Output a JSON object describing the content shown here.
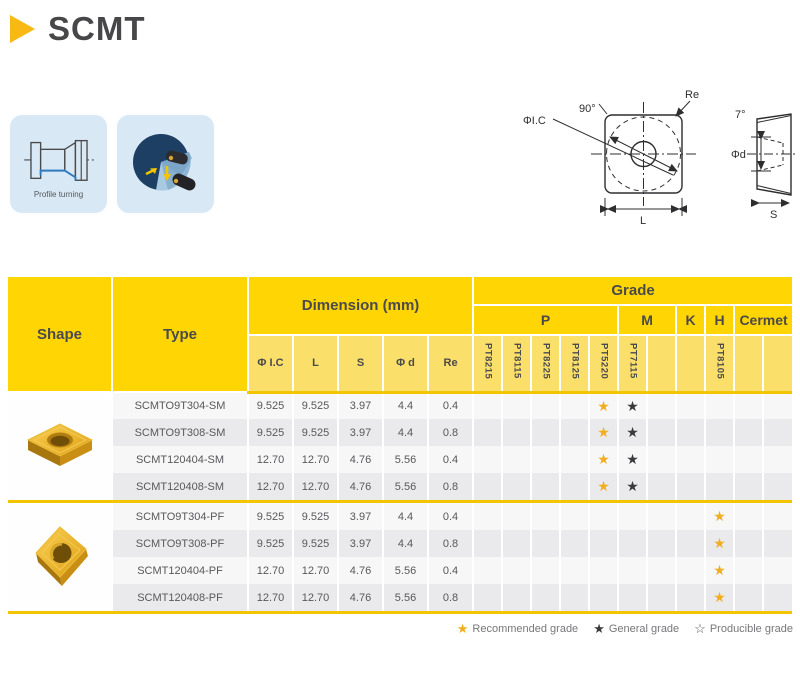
{
  "title": "SCMT",
  "cards": {
    "profile_turning_label": "Profile turning"
  },
  "diagram": {
    "labels": {
      "ic": "ΦI.C",
      "angle90": "90°",
      "re": "Re",
      "l": "L",
      "angle7": "7°",
      "d": "Φd",
      "s": "S"
    }
  },
  "table": {
    "headers": {
      "shape": "Shape",
      "type": "Type",
      "dimension": "Dimension (mm)",
      "grade": "Grade",
      "dim_cols": [
        "Φ I.C",
        "L",
        "S",
        "Φ d",
        "Re"
      ],
      "grade_groups": [
        {
          "label": "P",
          "span": 5
        },
        {
          "label": "M",
          "span": 2
        },
        {
          "label": "K",
          "span": 1
        },
        {
          "label": "H",
          "span": 1
        },
        {
          "label": "Cermet",
          "span": 2
        }
      ],
      "grade_cols": [
        "PT8215",
        "PT8115",
        "PT8225",
        "PT8125",
        "PT5220",
        "PT7115",
        "",
        "",
        "PT8105",
        "",
        ""
      ]
    },
    "groups": [
      {
        "shape_icon": "insert-a",
        "rows": [
          {
            "type": "SCMTO9T304-SM",
            "ic": "9.525",
            "l": "9.525",
            "s": "3.97",
            "d": "4.4",
            "re": "0.4",
            "stars": [
              {
                "col": "PT5220",
                "kind": "recommended"
              },
              {
                "col": "PT7115",
                "kind": "general"
              }
            ]
          },
          {
            "type": "SCMTO9T308-SM",
            "ic": "9.525",
            "l": "9.525",
            "s": "3.97",
            "d": "4.4",
            "re": "0.8",
            "stars": [
              {
                "col": "PT5220",
                "kind": "recommended"
              },
              {
                "col": "PT7115",
                "kind": "general"
              }
            ]
          },
          {
            "type": "SCMT120404-SM",
            "ic": "12.70",
            "l": "12.70",
            "s": "4.76",
            "d": "5.56",
            "re": "0.4",
            "stars": [
              {
                "col": "PT5220",
                "kind": "recommended"
              },
              {
                "col": "PT7115",
                "kind": "general"
              }
            ]
          },
          {
            "type": "SCMT120408-SM",
            "ic": "12.70",
            "l": "12.70",
            "s": "4.76",
            "d": "5.56",
            "re": "0.8",
            "stars": [
              {
                "col": "PT5220",
                "kind": "recommended"
              },
              {
                "col": "PT7115",
                "kind": "general"
              }
            ]
          }
        ]
      },
      {
        "shape_icon": "insert-b",
        "rows": [
          {
            "type": "SCMTO9T304-PF",
            "ic": "9.525",
            "l": "9.525",
            "s": "3.97",
            "d": "4.4",
            "re": "0.4",
            "stars": [
              {
                "col": "PT8105",
                "kind": "recommended"
              }
            ]
          },
          {
            "type": "SCMTO9T308-PF",
            "ic": "9.525",
            "l": "9.525",
            "s": "3.97",
            "d": "4.4",
            "re": "0.8",
            "stars": [
              {
                "col": "PT8105",
                "kind": "recommended"
              }
            ]
          },
          {
            "type": "SCMT120404-PF",
            "ic": "12.70",
            "l": "12.70",
            "s": "4.76",
            "d": "5.56",
            "re": "0.4",
            "stars": [
              {
                "col": "PT8105",
                "kind": "recommended"
              }
            ]
          },
          {
            "type": "SCMT120408-PF",
            "ic": "12.70",
            "l": "12.70",
            "s": "4.76",
            "d": "5.56",
            "re": "0.8",
            "stars": [
              {
                "col": "PT8105",
                "kind": "recommended"
              }
            ]
          }
        ]
      }
    ]
  },
  "legend": {
    "star_symbols": {
      "recommended": "★",
      "general": "★",
      "producible": "☆"
    },
    "items": [
      {
        "kind": "recommended",
        "label": "Recommended grade"
      },
      {
        "kind": "general",
        "label": "General grade"
      },
      {
        "kind": "producible",
        "label": "Producible grade"
      }
    ]
  },
  "colors": {
    "header_yellow": "#FFD503",
    "subheader_yellow": "#FBDF6B",
    "gold_line": "#F2C500",
    "star_recommended": "#F0AF1E",
    "star_general": "#3A3A3D",
    "card_blue": "#D8E8F4",
    "title_arrow": "#F9B915"
  }
}
